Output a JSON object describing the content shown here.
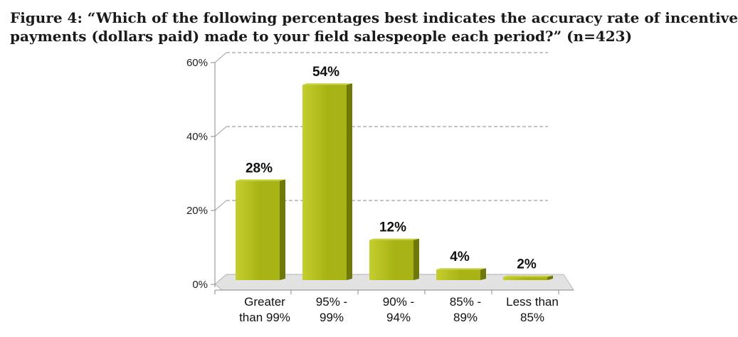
{
  "figure": {
    "title_line1": "Figure 4: “Which of the following percentages best indicates the accuracy rate of incentive",
    "title_line2": "payments (dollars paid) made to your field salespeople each period?” (n=423)"
  },
  "chart_data": {
    "type": "bar",
    "categories": [
      [
        "Greater",
        "than 99%"
      ],
      [
        "95% -",
        "99%"
      ],
      [
        "90% -",
        "94%"
      ],
      [
        "85% -",
        "89%"
      ],
      [
        "Less than",
        "85%"
      ]
    ],
    "values": [
      28,
      54,
      12,
      4,
      2
    ],
    "data_labels": [
      "28%",
      "54%",
      "12%",
      "4%",
      "2%"
    ],
    "ylim": [
      0,
      60
    ],
    "yticks": [
      0,
      20,
      40,
      60
    ],
    "ytick_labels": [
      "0%",
      "20%",
      "40%",
      "60%"
    ],
    "grid": true,
    "three_d": true,
    "colors": {
      "bar_front": "#a8b415",
      "bar_front_light": "#c4ce2e",
      "bar_side": "#6f7808",
      "bar_top": "#c9d33a",
      "gridline": "#a0a0a0",
      "floor": "#b8b8b8"
    }
  }
}
